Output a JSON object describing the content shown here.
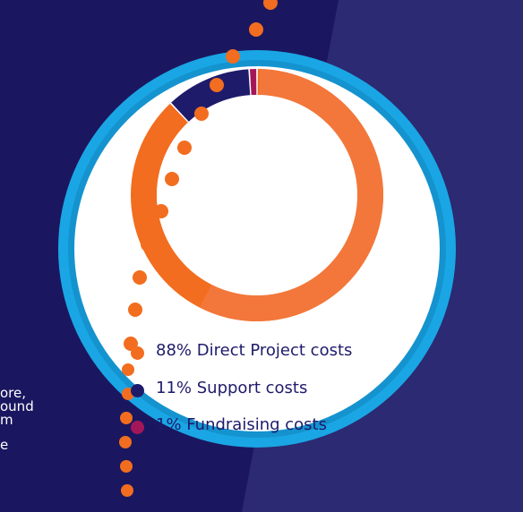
{
  "chart_data": {
    "type": "pie",
    "style": "donut",
    "categories": [
      "Direct Project costs",
      "Support costs",
      "Fundraising costs"
    ],
    "values": [
      88,
      11,
      1
    ],
    "legend": [
      {
        "percent": "88%",
        "label": "Direct Project costs",
        "color": "#f26d1f"
      },
      {
        "percent": "11%",
        "label": "Support costs",
        "color": "#1e1b6b"
      },
      {
        "percent": "1%",
        "label": "Fundraising costs",
        "color": "#a3175a"
      }
    ],
    "legend_position": "bottom"
  },
  "colors": {
    "background": "#1a1760",
    "background_right": "#2b2a72",
    "ring_border": "#1aa6e4",
    "ring_fill": "#ffffff",
    "dots": "#f26d1f",
    "slice_main": "#f26d1f",
    "slice_main_light": "#f3773a",
    "slice_support": "#1e1b6b",
    "slice_fundraising": "#a3175a"
  },
  "side_text": {
    "lines": [
      "ore,",
      "ound",
      "m",
      "e"
    ]
  }
}
